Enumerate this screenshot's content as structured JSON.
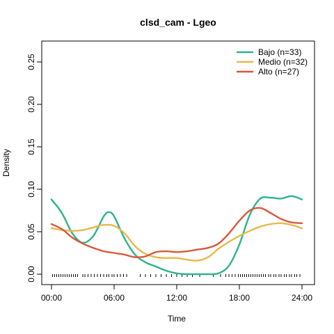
{
  "chart_data": {
    "type": "line",
    "title": "clsd_cam - Lgeo",
    "xlabel": "Time",
    "ylabel": "Density",
    "xlim": [
      0,
      24
    ],
    "ylim": [
      0,
      0.27
    ],
    "x_ticks": [
      {
        "value": 0,
        "label": "00:00"
      },
      {
        "value": 6,
        "label": "06:00"
      },
      {
        "value": 12,
        "label": "12:00"
      },
      {
        "value": 18,
        "label": "18:00"
      },
      {
        "value": 24,
        "label": "24:00"
      }
    ],
    "y_ticks": [
      {
        "value": 0.0,
        "label": "0.00"
      },
      {
        "value": 0.05,
        "label": "0.05"
      },
      {
        "value": 0.1,
        "label": "0.10"
      },
      {
        "value": 0.15,
        "label": "0.15"
      },
      {
        "value": 0.2,
        "label": "0.20"
      },
      {
        "value": 0.25,
        "label": "0.25"
      }
    ],
    "legend_position": "top-right",
    "grid": false,
    "series": [
      {
        "name": "Bajo (n=33)",
        "color": "#2db38a",
        "points": [
          [
            0,
            0.088
          ],
          [
            1,
            0.072
          ],
          [
            2,
            0.048
          ],
          [
            3,
            0.037
          ],
          [
            4,
            0.045
          ],
          [
            5,
            0.068
          ],
          [
            5.5,
            0.073
          ],
          [
            6,
            0.068
          ],
          [
            7,
            0.042
          ],
          [
            8,
            0.023
          ],
          [
            9,
            0.014
          ],
          [
            10,
            0.009
          ],
          [
            11,
            0.004
          ],
          [
            12,
            0.001
          ],
          [
            13,
            0.0
          ],
          [
            14,
            0.0
          ],
          [
            15,
            0.0
          ],
          [
            16,
            0.001
          ],
          [
            17,
            0.01
          ],
          [
            18,
            0.035
          ],
          [
            19,
            0.07
          ],
          [
            20,
            0.089
          ],
          [
            21,
            0.09
          ],
          [
            22,
            0.089
          ],
          [
            23,
            0.092
          ],
          [
            24,
            0.088
          ]
        ]
      },
      {
        "name": "Medio (n=32)",
        "color": "#e8b84b",
        "points": [
          [
            0,
            0.054
          ],
          [
            1,
            0.052
          ],
          [
            2,
            0.051
          ],
          [
            3,
            0.052
          ],
          [
            4,
            0.055
          ],
          [
            5,
            0.058
          ],
          [
            6,
            0.057
          ],
          [
            7,
            0.048
          ],
          [
            8,
            0.033
          ],
          [
            9,
            0.024
          ],
          [
            10,
            0.02
          ],
          [
            11,
            0.019
          ],
          [
            12,
            0.019
          ],
          [
            13,
            0.017
          ],
          [
            14,
            0.016
          ],
          [
            15,
            0.02
          ],
          [
            16,
            0.03
          ],
          [
            17,
            0.038
          ],
          [
            18,
            0.045
          ],
          [
            19,
            0.051
          ],
          [
            20,
            0.056
          ],
          [
            21,
            0.059
          ],
          [
            22,
            0.06
          ],
          [
            23,
            0.058
          ],
          [
            24,
            0.054
          ]
        ]
      },
      {
        "name": "Alto (n=27)",
        "color": "#d9573a",
        "points": [
          [
            0,
            0.059
          ],
          [
            1,
            0.053
          ],
          [
            2,
            0.043
          ],
          [
            3,
            0.036
          ],
          [
            4,
            0.031
          ],
          [
            5,
            0.027
          ],
          [
            6,
            0.025
          ],
          [
            7,
            0.023
          ],
          [
            8,
            0.02
          ],
          [
            9,
            0.021
          ],
          [
            10,
            0.026
          ],
          [
            11,
            0.027
          ],
          [
            12,
            0.026
          ],
          [
            13,
            0.027
          ],
          [
            14,
            0.029
          ],
          [
            15,
            0.031
          ],
          [
            16,
            0.036
          ],
          [
            17,
            0.048
          ],
          [
            18,
            0.063
          ],
          [
            19,
            0.075
          ],
          [
            20,
            0.078
          ],
          [
            21,
            0.072
          ],
          [
            22,
            0.065
          ],
          [
            23,
            0.061
          ],
          [
            24,
            0.06
          ]
        ]
      }
    ],
    "rug": [
      0.1,
      0.3,
      0.5,
      0.7,
      0.9,
      1.1,
      1.3,
      1.5,
      1.7,
      1.9,
      2.1,
      2.3,
      2.5,
      3.0,
      3.2,
      3.5,
      3.8,
      4.1,
      4.4,
      4.7,
      5.0,
      5.3,
      5.5,
      5.8,
      6.0,
      6.3,
      6.6,
      6.9,
      7.2,
      8.5,
      9.0,
      9.5,
      10.0,
      10.5,
      11.0,
      11.5,
      12.0,
      12.5,
      13.0,
      13.5,
      14.2,
      15.5,
      16.2,
      16.7,
      17.0,
      17.3,
      17.6,
      17.9,
      18.1,
      18.3,
      18.5,
      18.7,
      18.9,
      19.1,
      19.3,
      19.5,
      19.7,
      19.9,
      20.1,
      20.3,
      20.5,
      20.8,
      21.0,
      21.3,
      21.5,
      21.8,
      22.0,
      22.3,
      22.5,
      22.8,
      23.0,
      23.3,
      23.5,
      23.8
    ]
  }
}
